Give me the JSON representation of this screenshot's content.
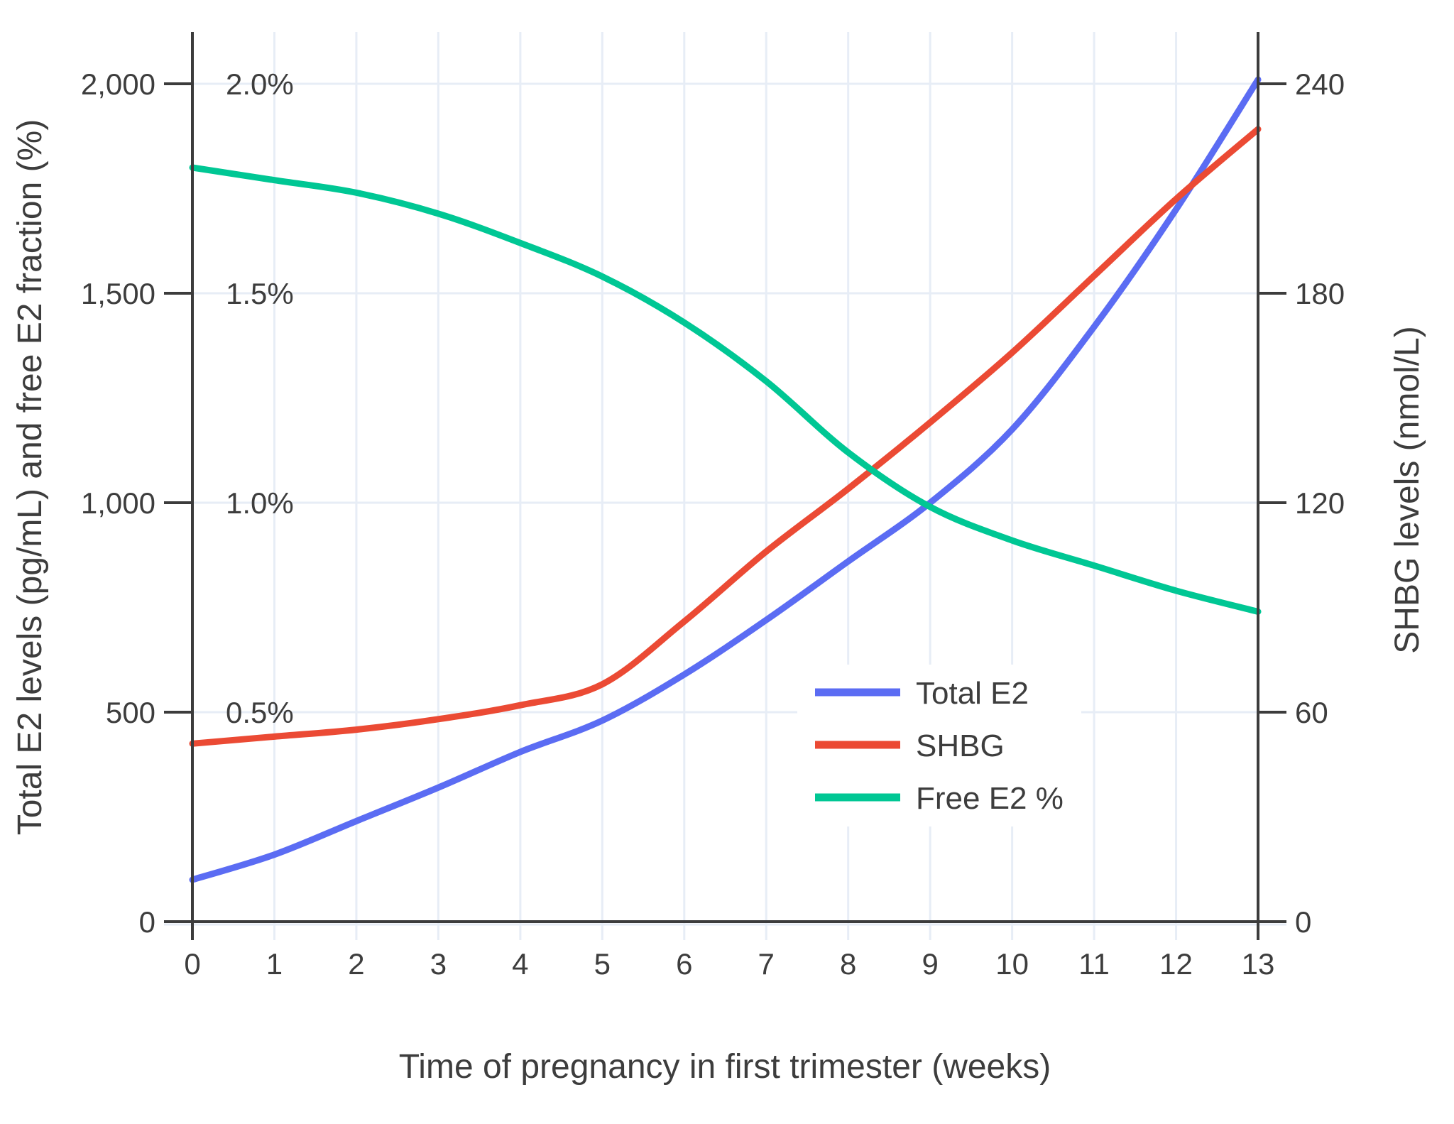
{
  "chart_data": {
    "type": "line",
    "title": "",
    "xlabel": "Time of pregnancy in first trimester (weeks)",
    "ylabel_left": "Total E2 levels (pg/mL) and free E2 fraction (%)",
    "ylabel_right": "SHBG levels (nmol/L)",
    "x": [
      0,
      1,
      2,
      3,
      4,
      5,
      6,
      7,
      8,
      9,
      10,
      11,
      12,
      13
    ],
    "xlim": [
      0,
      13
    ],
    "ylim_left": [
      0,
      2000
    ],
    "ylim_right": [
      0,
      240
    ],
    "grid": true,
    "legend_position": "inside-lower-right",
    "x_axis": {
      "ticks": [
        {
          "v": 0,
          "label": "0"
        },
        {
          "v": 1,
          "label": "1"
        },
        {
          "v": 2,
          "label": "2"
        },
        {
          "v": 3,
          "label": "3"
        },
        {
          "v": 4,
          "label": "4"
        },
        {
          "v": 5,
          "label": "5"
        },
        {
          "v": 6,
          "label": "6"
        },
        {
          "v": 7,
          "label": "7"
        },
        {
          "v": 8,
          "label": "8"
        },
        {
          "v": 9,
          "label": "9"
        },
        {
          "v": 10,
          "label": "10"
        },
        {
          "v": 11,
          "label": "11"
        },
        {
          "v": 12,
          "label": "12"
        },
        {
          "v": 13,
          "label": "13"
        }
      ]
    },
    "left_axis": {
      "ticks": [
        {
          "v": 0,
          "label": "0"
        },
        {
          "v": 500,
          "label": "500"
        },
        {
          "v": 1000,
          "label": "1,000"
        },
        {
          "v": 1500,
          "label": "1,500"
        },
        {
          "v": 2000,
          "label": "2,000"
        }
      ]
    },
    "percent_labels": [
      {
        "v": 500,
        "label": "0.5%"
      },
      {
        "v": 1000,
        "label": "1.0%"
      },
      {
        "v": 1500,
        "label": "1.5%"
      },
      {
        "v": 2000,
        "label": "2.0%"
      }
    ],
    "right_axis": {
      "ticks": [
        {
          "v": 0,
          "label": "0"
        },
        {
          "v": 60,
          "label": "60"
        },
        {
          "v": 120,
          "label": "120"
        },
        {
          "v": 180,
          "label": "180"
        },
        {
          "v": 240,
          "label": "240"
        }
      ]
    },
    "series": [
      {
        "name": "Total E2",
        "axis": "left",
        "unit": "pg/mL",
        "color": "#5B6CF3",
        "values": [
          100,
          160,
          240,
          320,
          405,
          480,
          590,
          720,
          860,
          1000,
          1175,
          1420,
          1700,
          2010
        ]
      },
      {
        "name": "SHBG",
        "axis": "right",
        "unit": "nmol/L",
        "color": "#EB4A34",
        "values": [
          51,
          53,
          55,
          58,
          62,
          68,
          86,
          106,
          124,
          143,
          163,
          185,
          207,
          227
        ]
      },
      {
        "name": "Free E2 %",
        "axis": "percent",
        "unit": "%",
        "color": "#00C794",
        "values": [
          1.8,
          1.77,
          1.74,
          1.69,
          1.62,
          1.54,
          1.43,
          1.29,
          1.12,
          0.99,
          0.91,
          0.85,
          0.79,
          0.74
        ]
      }
    ]
  },
  "colors": {
    "grid": "#E7EDF6",
    "axis": "#3C3C3C",
    "text": "#3D3D3D",
    "legend_bg": "#FFFFFF"
  }
}
